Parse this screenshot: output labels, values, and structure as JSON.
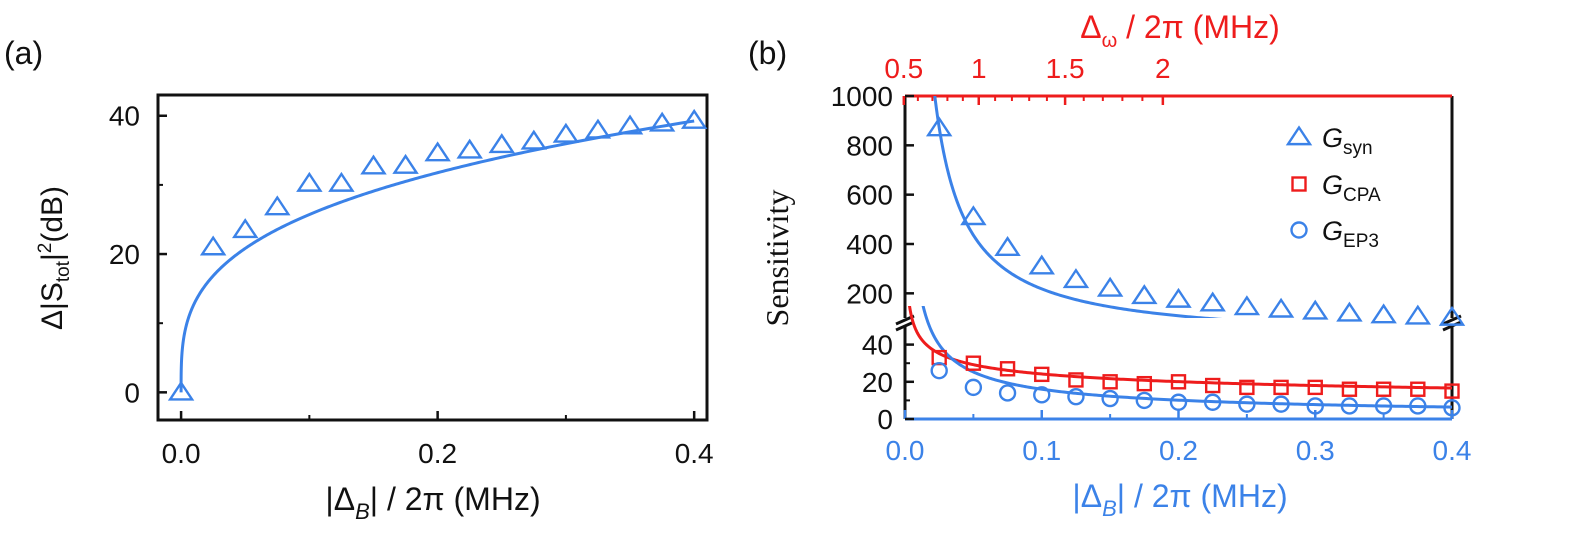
{
  "colors": {
    "blue": "#3b82e8",
    "red": "#ee1c1c",
    "black": "#111111"
  },
  "chart_data": [
    {
      "type": "scatter",
      "panel_label": "(a)",
      "ylabel_parts": {
        "pre": "Δ|S",
        "sub": "tot",
        "post": "|",
        "sup": "2",
        "end": "(dB)"
      },
      "xlabel_parts": {
        "pre": "|Δ",
        "sub": "B",
        "post": "| / 2π (MHz)"
      },
      "xlim": [
        -0.018,
        0.41
      ],
      "ylim": [
        -4,
        43
      ],
      "xticks": [
        0.0,
        0.2,
        0.4
      ],
      "xtick_labels": [
        "0.0",
        "0.2",
        "0.4"
      ],
      "xminor": [
        0.1,
        0.3
      ],
      "yticks": [
        0,
        20,
        40
      ],
      "ytick_labels": [
        "0",
        "20",
        "40"
      ],
      "yminor": [
        10,
        30
      ],
      "series": [
        {
          "marker": "triangle",
          "color": "#3b82e8",
          "x": [
            0.0,
            0.025,
            0.05,
            0.075,
            0.1,
            0.125,
            0.15,
            0.175,
            0.2,
            0.225,
            0.25,
            0.275,
            0.3,
            0.325,
            0.35,
            0.375,
            0.4
          ],
          "y": [
            0.0,
            21.0,
            23.5,
            26.8,
            30.2,
            30.2,
            32.7,
            32.8,
            34.6,
            35.0,
            35.8,
            36.3,
            37.3,
            37.9,
            38.5,
            38.9,
            39.3
          ]
        }
      ],
      "fit": {
        "form": "a*x^b",
        "a": 51.9,
        "b": 0.305,
        "color": "#3b82e8"
      }
    },
    {
      "type": "scatter",
      "panel_label": "(b)",
      "ylabel": "Sensitivity",
      "xlabel_parts": {
        "pre": "|Δ",
        "sub": "B",
        "post": "| / 2π (MHz)"
      },
      "top_xlabel_parts": {
        "pre": "Δ",
        "sub": "ω",
        "post": " / 2π (MHz)"
      },
      "xlim": [
        0.0,
        0.4
      ],
      "xticks": [
        0.0,
        0.1,
        0.2,
        0.3,
        0.4
      ],
      "xtick_labels": [
        "0.0",
        "0.1",
        "0.2",
        "0.3",
        "0.4"
      ],
      "xminor": [
        0.05,
        0.15,
        0.25,
        0.35
      ],
      "top_axis": {
        "ticks": [
          0.5,
          1,
          1.5,
          2
        ],
        "tick_labels": [
          "0.5",
          "1",
          "1.5",
          "2"
        ],
        "minor": [
          0.6,
          0.7,
          0.8,
          0.9,
          1.1,
          1.2,
          1.3,
          1.4,
          1.6,
          1.7,
          1.8,
          1.9
        ],
        "color": "#ee1c1c"
      },
      "y_break": true,
      "upper_ylim": [
        100,
        1000
      ],
      "upper_yticks": [
        200,
        400,
        600,
        800,
        1000
      ],
      "upper_ytick_labels": [
        "200",
        "400",
        "600",
        "800",
        "1000"
      ],
      "lower_ylim": [
        0,
        50
      ],
      "lower_yticks": [
        0,
        20,
        40
      ],
      "lower_ytick_labels": [
        "0",
        "20",
        "40"
      ],
      "lower_yminor": [
        10,
        30
      ],
      "legend_position": "top-right",
      "series": [
        {
          "legend": {
            "main": "G",
            "sub": "syn"
          },
          "marker": "triangle",
          "color": "#3b82e8",
          "x": [
            0.025,
            0.05,
            0.075,
            0.1,
            0.125,
            0.15,
            0.175,
            0.2,
            0.225,
            0.25,
            0.275,
            0.3,
            0.325,
            0.35,
            0.375,
            0.4
          ],
          "y": [
            870,
            510,
            385,
            310,
            255,
            220,
            190,
            175,
            160,
            145,
            135,
            127,
            119,
            112,
            107,
            102
          ],
          "fit": {
            "form": "a/x",
            "a": 21.8
          }
        },
        {
          "legend": {
            "main": "G",
            "sub": "CPA"
          },
          "marker": "square",
          "color": "#ee1c1c",
          "x": [
            0.025,
            0.05,
            0.075,
            0.1,
            0.125,
            0.15,
            0.175,
            0.2,
            0.225,
            0.25,
            0.275,
            0.3,
            0.325,
            0.35,
            0.375,
            0.4
          ],
          "y": [
            33,
            30,
            27,
            24,
            21,
            20,
            19,
            20,
            18,
            17,
            17,
            17,
            16,
            16,
            16,
            15
          ],
          "fit": {
            "form": "a*x^b",
            "a": 13.0,
            "b": -0.27
          }
        },
        {
          "legend": {
            "main": "G",
            "sub": "EP3"
          },
          "marker": "circle",
          "color": "#3b82e8",
          "x": [
            0.025,
            0.05,
            0.075,
            0.1,
            0.125,
            0.15,
            0.175,
            0.2,
            0.225,
            0.25,
            0.275,
            0.3,
            0.325,
            0.35,
            0.375,
            0.4
          ],
          "y": [
            26,
            17,
            14,
            13,
            12,
            11,
            10,
            9,
            9,
            8,
            8,
            7,
            7,
            7,
            7,
            6
          ],
          "fit": {
            "form": "a*x^b",
            "a": 3.5,
            "b": -0.66
          }
        }
      ]
    }
  ]
}
